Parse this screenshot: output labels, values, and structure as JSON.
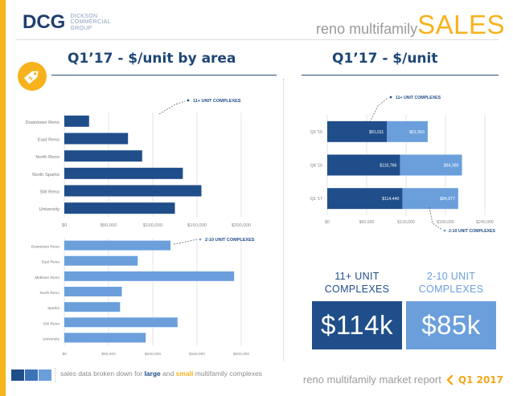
{
  "header": {
    "logo_mark": "DCG",
    "logo_name": "DICKSON COMMERCIAL GROUP",
    "title_small": "reno multifamily",
    "title_big": "SALES"
  },
  "headings": {
    "left": "Q1’17 - $/unit by area",
    "right": "Q1’17 - $/unit"
  },
  "colors": {
    "accent": "#f7b21c",
    "navy": "#1f4e8a",
    "light_blue": "#6a9fdc"
  },
  "stats": {
    "large": {
      "label_line1": "11+ UNIT",
      "label_line2": "COMPLEXES",
      "value": "$114k",
      "color": "#1f4e8a"
    },
    "small": {
      "label_line1": "2-10 UNIT",
      "label_line2": "COMPLEXES",
      "value": "$85k",
      "color": "#6a9fdc"
    }
  },
  "footer": {
    "text_before": "sales data broken down for ",
    "word_large": "large",
    "text_and": " and ",
    "word_small": "small",
    "text_after": " multifamily complexes",
    "report": "reno multifamily market report",
    "quarter": "Q1 2017"
  },
  "chart_data": [
    {
      "type": "bar",
      "orientation": "horizontal",
      "annotation": "11+ UNIT COMPLEXES",
      "categories": [
        "Downtown Reno",
        "East Reno",
        "North Reno",
        "North Sparks",
        "SW Reno",
        "University"
      ],
      "values": [
        28000,
        72000,
        88000,
        134000,
        155000,
        125000
      ],
      "xlim": [
        0,
        220000
      ],
      "xticks": [
        "$0",
        "$50,000",
        "$100,000",
        "$150,000",
        "$200,000"
      ],
      "color": "#1f4e8a"
    },
    {
      "type": "bar",
      "orientation": "horizontal",
      "annotation": "2-10 UNIT COMPLEXES",
      "categories": [
        "Downtown Reno",
        "East Reno",
        "Midtown Reno",
        "North Reno",
        "Sparks",
        "SW Reno",
        "University"
      ],
      "values": [
        120000,
        83000,
        192000,
        65000,
        63000,
        128000,
        92000
      ],
      "xlim": [
        0,
        220000
      ],
      "xticks": [
        "$0",
        "$50,000",
        "$100,000",
        "$150,000",
        "$200,000"
      ],
      "color": "#6a9fdc"
    },
    {
      "type": "bar",
      "orientation": "horizontal",
      "stacked": true,
      "annotation_top": "11+ UNIT COMPLEXES",
      "annotation_bottom": "2-10 UNIT COMPLEXES",
      "categories": [
        "Q3 '16",
        "Q4 '16",
        "Q1 '17"
      ],
      "series": [
        {
          "name": "11+ UNIT COMPLEXES",
          "values": [
            91011,
            110766,
            114440
          ],
          "labels": [
            "$91,011",
            "$110,766",
            "$114,440"
          ],
          "color": "#1f4e8a"
        },
        {
          "name": "2-10 UNIT COMPLEXES",
          "values": [
            61950,
            94380,
            84977
          ],
          "labels": [
            "$61,950",
            "$94,380",
            "$84,977"
          ],
          "color": "#6a9fdc"
        }
      ],
      "xlim": [
        0,
        240000
      ],
      "xticks": [
        "$0",
        "$60,000",
        "$120,000",
        "$180,000",
        "$240,000"
      ]
    }
  ]
}
